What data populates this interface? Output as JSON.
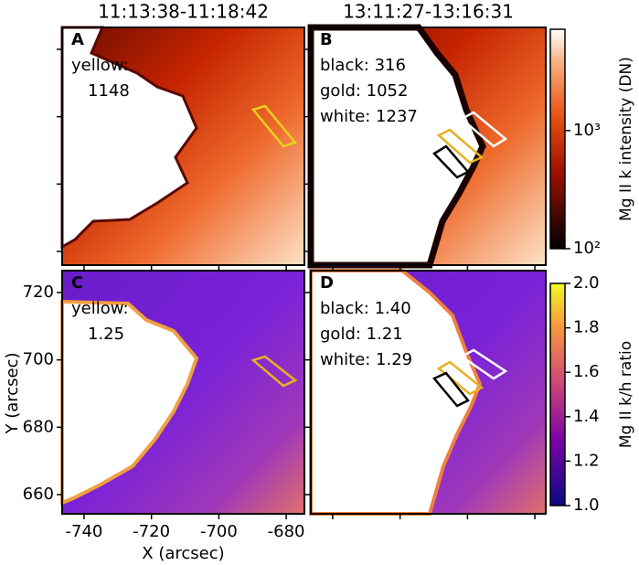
{
  "chart_data": [
    {
      "type": "image",
      "title": "11:13:38-11:18:42",
      "label": "A",
      "annotations": [
        "yellow:",
        "1148"
      ]
    },
    {
      "type": "image",
      "title": "13:11:27-13:16:31",
      "label": "B",
      "annotations": [
        "black:  316",
        "gold: 1052",
        "white: 1237"
      ],
      "colorbar": {
        "label": "Mg II k intensity (DN)",
        "log": true,
        "lim": [
          100,
          7200
        ],
        "ticks": [
          {
            "value": 100,
            "label": "10²"
          },
          {
            "value": 1000,
            "label": "10³"
          }
        ]
      }
    },
    {
      "type": "image",
      "label": "C",
      "annotations": [
        "yellow:",
        "1.25"
      ],
      "xlabel": "X (arcsec)",
      "ylabel": "Y (arcsec)",
      "xlim": [
        -746.5,
        -674.6
      ],
      "xticks": [
        -740,
        -720,
        -700,
        -680
      ],
      "ylim": [
        654.3,
        726.5
      ],
      "yticks": [
        660,
        680,
        700,
        720
      ]
    },
    {
      "type": "image",
      "label": "D",
      "annotations": [
        "black: 1.40",
        "gold: 1.21",
        "white: 1.29"
      ],
      "colorbar": {
        "label": "Mg II k/h ratio",
        "log": false,
        "lim": [
          1.0,
          2.0
        ],
        "ticks": [
          {
            "value": 1.0,
            "label": "1.0"
          },
          1.2,
          1.4,
          1.6,
          1.8,
          {
            "value": 2.0,
            "label": "2.0"
          }
        ]
      }
    }
  ]
}
